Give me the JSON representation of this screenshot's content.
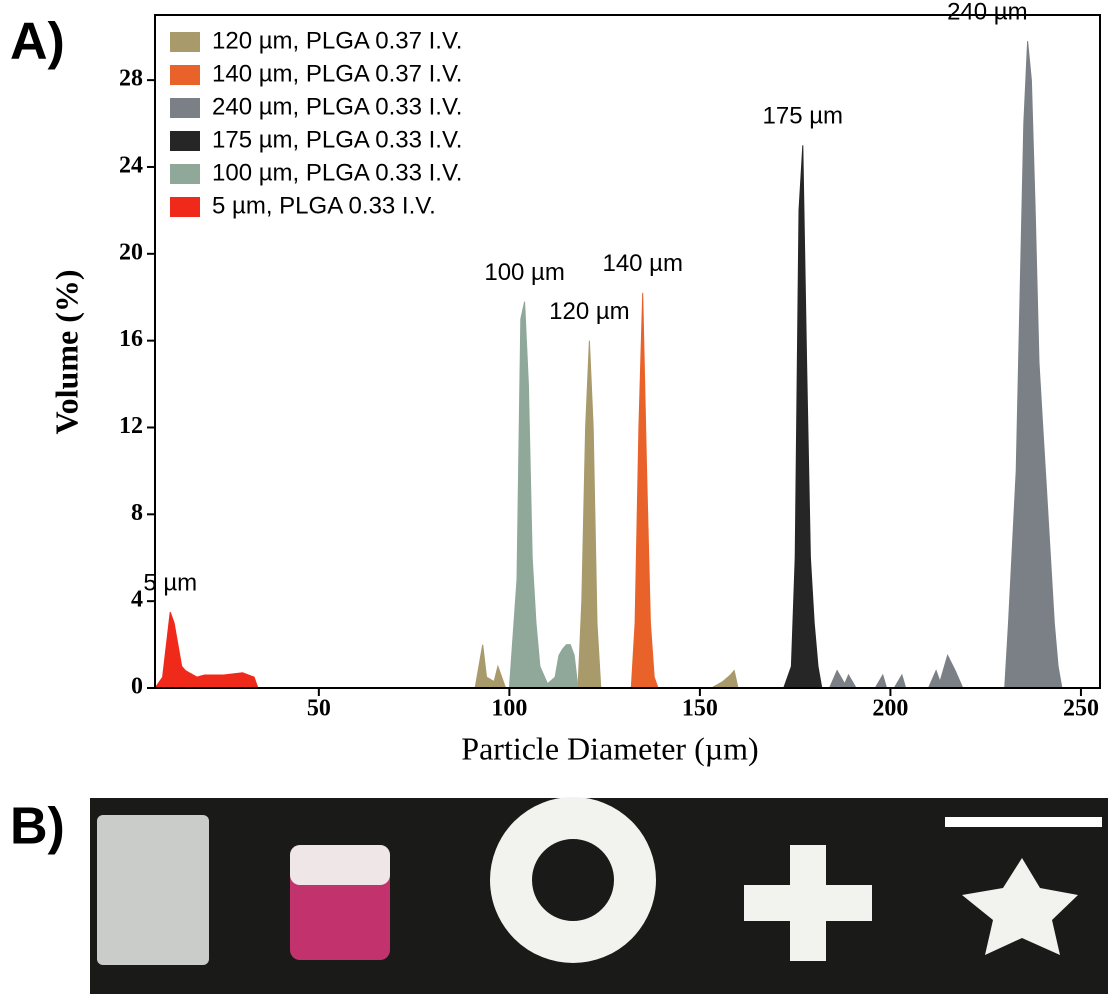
{
  "panel_labels": [
    "A)",
    "B)"
  ],
  "chart_data": {
    "type": "area",
    "x_label": "Particle Diameter (µm)",
    "y_label": "Volume (%)",
    "xlim": [
      7,
      255
    ],
    "ylim": [
      0,
      31
    ],
    "xticks": [
      50,
      100,
      150,
      200,
      250
    ],
    "yticks": [
      0,
      4,
      8,
      12,
      16,
      20,
      24,
      28
    ],
    "legend": "upper left",
    "series": [
      {
        "name": "120 µm, PLGA 0.37 I.V.",
        "peak_label": "120 µm",
        "color": "#a89a6a",
        "x": [
          91,
          93,
          94,
          96,
          97,
          99,
          118,
          119,
          120,
          121,
          122,
          123,
          124,
          153,
          156,
          158,
          159,
          160
        ],
        "values": [
          0,
          2,
          0.5,
          0.3,
          1,
          0,
          0,
          4,
          12,
          16,
          12,
          3,
          0,
          0,
          0.3,
          0.6,
          0.8,
          0
        ]
      },
      {
        "name": "140 µm, PLGA 0.37 I.V.",
        "peak_label": "140 µm",
        "color": "#e8622a",
        "x": [
          132,
          133,
          134,
          135,
          136,
          137,
          138,
          139
        ],
        "values": [
          0,
          3,
          12,
          18.2,
          10,
          3,
          0.5,
          0
        ]
      },
      {
        "name": "240 µm, PLGA 0.33 I.V.",
        "peak_label": "240 µm",
        "color": "#7b8087",
        "x": [
          184,
          186,
          188,
          189,
          191,
          196,
          198,
          199,
          201,
          203,
          204,
          210,
          212,
          213,
          215,
          217,
          219,
          230,
          231,
          233,
          234,
          235,
          236,
          237,
          238,
          239,
          240,
          241,
          242,
          243,
          244,
          245
        ],
        "values": [
          0,
          0.8,
          0.2,
          0.6,
          0,
          0,
          0.6,
          0,
          0,
          0.6,
          0,
          0,
          0.8,
          0.3,
          1.5,
          0.8,
          0,
          0,
          3,
          10,
          18,
          26,
          29.8,
          28,
          22,
          15,
          12,
          9,
          6,
          3,
          1,
          0
        ]
      },
      {
        "name": "175 µm, PLGA 0.33 I.V.",
        "peak_label": "175 µm",
        "color": "#262626",
        "x": [
          172,
          174,
          175,
          176,
          177,
          178,
          179,
          180,
          181,
          182
        ],
        "values": [
          0,
          1,
          6,
          22,
          25,
          15,
          6,
          3,
          1,
          0
        ]
      },
      {
        "name": "100 µm, PLGA 0.33 I.V.",
        "peak_label": "100 µm",
        "color": "#8fa89a",
        "x": [
          100,
          102,
          103,
          104,
          105,
          106,
          107,
          108,
          110,
          112,
          113,
          114,
          115,
          116,
          117,
          118
        ],
        "values": [
          0,
          5,
          17,
          17.8,
          14,
          6,
          3,
          1,
          0.2,
          0.5,
          1.5,
          1.8,
          2,
          2,
          1.5,
          0
        ]
      },
      {
        "name": "5 µm, PLGA 0.33 I.V.",
        "peak_label": "5 µm",
        "color": "#f02a1a",
        "x": [
          7,
          9,
          10,
          11,
          12,
          13,
          14,
          15,
          16,
          18,
          20,
          25,
          30,
          33,
          34
        ],
        "values": [
          0,
          0.5,
          2,
          3.5,
          3,
          2,
          1,
          0.8,
          0.7,
          0.5,
          0.6,
          0.6,
          0.7,
          0.5,
          0
        ]
      }
    ]
  }
}
